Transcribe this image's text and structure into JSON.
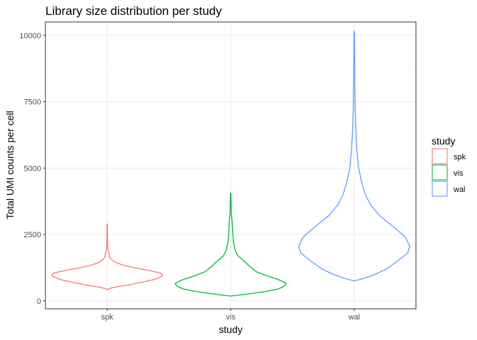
{
  "chart_data": {
    "type": "violin",
    "title": "Library size distribution per study",
    "xlabel": "study",
    "ylabel": "Total UMI counts per cell",
    "categories": [
      "spk",
      "vis",
      "wal"
    ],
    "ylim": [
      -300,
      10500
    ],
    "yticks": [
      0,
      2500,
      5000,
      7500,
      10000
    ],
    "grid": true,
    "theme": "bw",
    "legend": {
      "title": "study",
      "position": "right",
      "entries": [
        "spk",
        "vis",
        "wal"
      ]
    },
    "series": [
      {
        "name": "spk",
        "color": "#F8766D",
        "profile": [
          [
            430,
            0.0
          ],
          [
            500,
            0.1
          ],
          [
            600,
            0.38
          ],
          [
            700,
            0.62
          ],
          [
            800,
            0.84
          ],
          [
            900,
            0.96
          ],
          [
            960,
            1.0
          ],
          [
            1050,
            0.96
          ],
          [
            1150,
            0.74
          ],
          [
            1250,
            0.48
          ],
          [
            1350,
            0.28
          ],
          [
            1450,
            0.15
          ],
          [
            1550,
            0.08
          ],
          [
            1650,
            0.04
          ],
          [
            1750,
            0.035
          ],
          [
            1850,
            0.025
          ],
          [
            2000,
            0.01
          ],
          [
            2300,
            0.006
          ],
          [
            2600,
            0.004
          ],
          [
            2900,
            0.002
          ]
        ]
      },
      {
        "name": "vis",
        "color": "#00BA38",
        "profile": [
          [
            180,
            0.0
          ],
          [
            250,
            0.28
          ],
          [
            350,
            0.62
          ],
          [
            450,
            0.86
          ],
          [
            550,
            0.96
          ],
          [
            650,
            1.0
          ],
          [
            800,
            0.86
          ],
          [
            950,
            0.64
          ],
          [
            1100,
            0.46
          ],
          [
            1300,
            0.34
          ],
          [
            1500,
            0.24
          ],
          [
            1700,
            0.13
          ],
          [
            1900,
            0.08
          ],
          [
            2200,
            0.05
          ],
          [
            2600,
            0.035
          ],
          [
            3000,
            0.025
          ],
          [
            3300,
            0.012
          ],
          [
            3700,
            0.008
          ],
          [
            4050,
            0.003
          ]
        ]
      },
      {
        "name": "wal",
        "color": "#619CFF",
        "profile": [
          [
            750,
            0.0
          ],
          [
            850,
            0.18
          ],
          [
            1000,
            0.38
          ],
          [
            1200,
            0.58
          ],
          [
            1500,
            0.78
          ],
          [
            1800,
            0.96
          ],
          [
            2050,
            1.0
          ],
          [
            2400,
            0.92
          ],
          [
            2800,
            0.7
          ],
          [
            3200,
            0.46
          ],
          [
            3600,
            0.3
          ],
          [
            4000,
            0.2
          ],
          [
            4500,
            0.13
          ],
          [
            5000,
            0.08
          ],
          [
            5600,
            0.05
          ],
          [
            6200,
            0.035
          ],
          [
            7000,
            0.02
          ],
          [
            8000,
            0.012
          ],
          [
            9000,
            0.008
          ],
          [
            10150,
            0.003
          ]
        ]
      }
    ]
  }
}
